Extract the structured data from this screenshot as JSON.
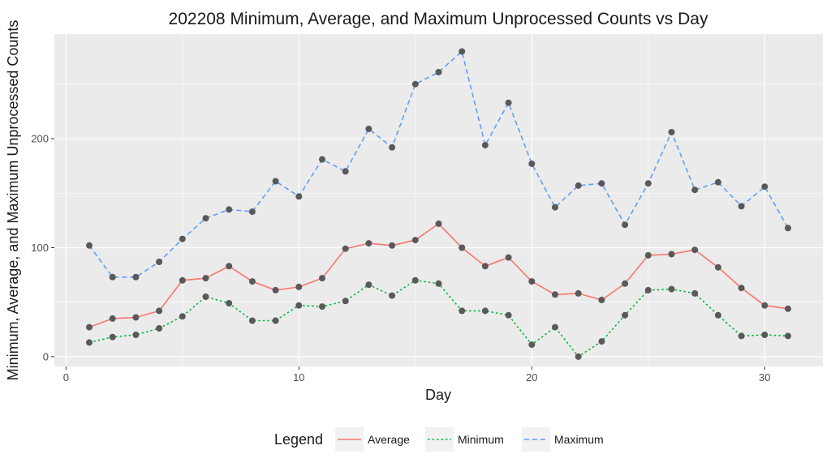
{
  "chart_data": {
    "type": "line",
    "title": "202208 Minimum, Average, and Maximum Unprocessed Counts vs Day",
    "xlabel": "Day",
    "ylabel": "Minimum, Average, and Maximum Unprocessed Counts",
    "xlim": [
      -0.5,
      32.5
    ],
    "ylim": [
      -9,
      296
    ],
    "x_ticks": [
      0,
      10,
      20,
      30
    ],
    "y_ticks": [
      0,
      100,
      200
    ],
    "grid": true,
    "legend": {
      "title": "Legend",
      "position": "bottom"
    },
    "x": [
      1,
      2,
      3,
      4,
      5,
      6,
      7,
      8,
      9,
      10,
      11,
      12,
      13,
      14,
      15,
      16,
      17,
      18,
      19,
      20,
      21,
      22,
      23,
      24,
      25,
      26,
      27,
      28,
      29,
      30,
      31
    ],
    "series": [
      {
        "name": "Average",
        "color": "#F8766D",
        "dash": "solid",
        "values": [
          27,
          35,
          36,
          42,
          70,
          72,
          83,
          69,
          61,
          64,
          72,
          99,
          104,
          102,
          107,
          122,
          100,
          83,
          91,
          69,
          57,
          58,
          52,
          67,
          93,
          94,
          98,
          82,
          63,
          47,
          44
        ]
      },
      {
        "name": "Minimum",
        "color": "#00BA38",
        "dash": "dotted",
        "values": [
          13,
          18,
          20,
          26,
          37,
          55,
          49,
          33,
          33,
          47,
          46,
          51,
          66,
          56,
          70,
          67,
          42,
          42,
          38,
          11,
          27,
          0,
          14,
          38,
          61,
          62,
          58,
          38,
          19,
          20,
          19
        ]
      },
      {
        "name": "Maximum",
        "color": "#619CFF",
        "dash": "dashed",
        "values": [
          102,
          73,
          73,
          87,
          108,
          127,
          135,
          133,
          161,
          147,
          181,
          170,
          209,
          192,
          250,
          261,
          280,
          194,
          233,
          177,
          137,
          157,
          159,
          121,
          159,
          206,
          153,
          160,
          138,
          156,
          118
        ]
      }
    ],
    "point_color": "#595959",
    "panel_background": "#EBEBEB"
  }
}
